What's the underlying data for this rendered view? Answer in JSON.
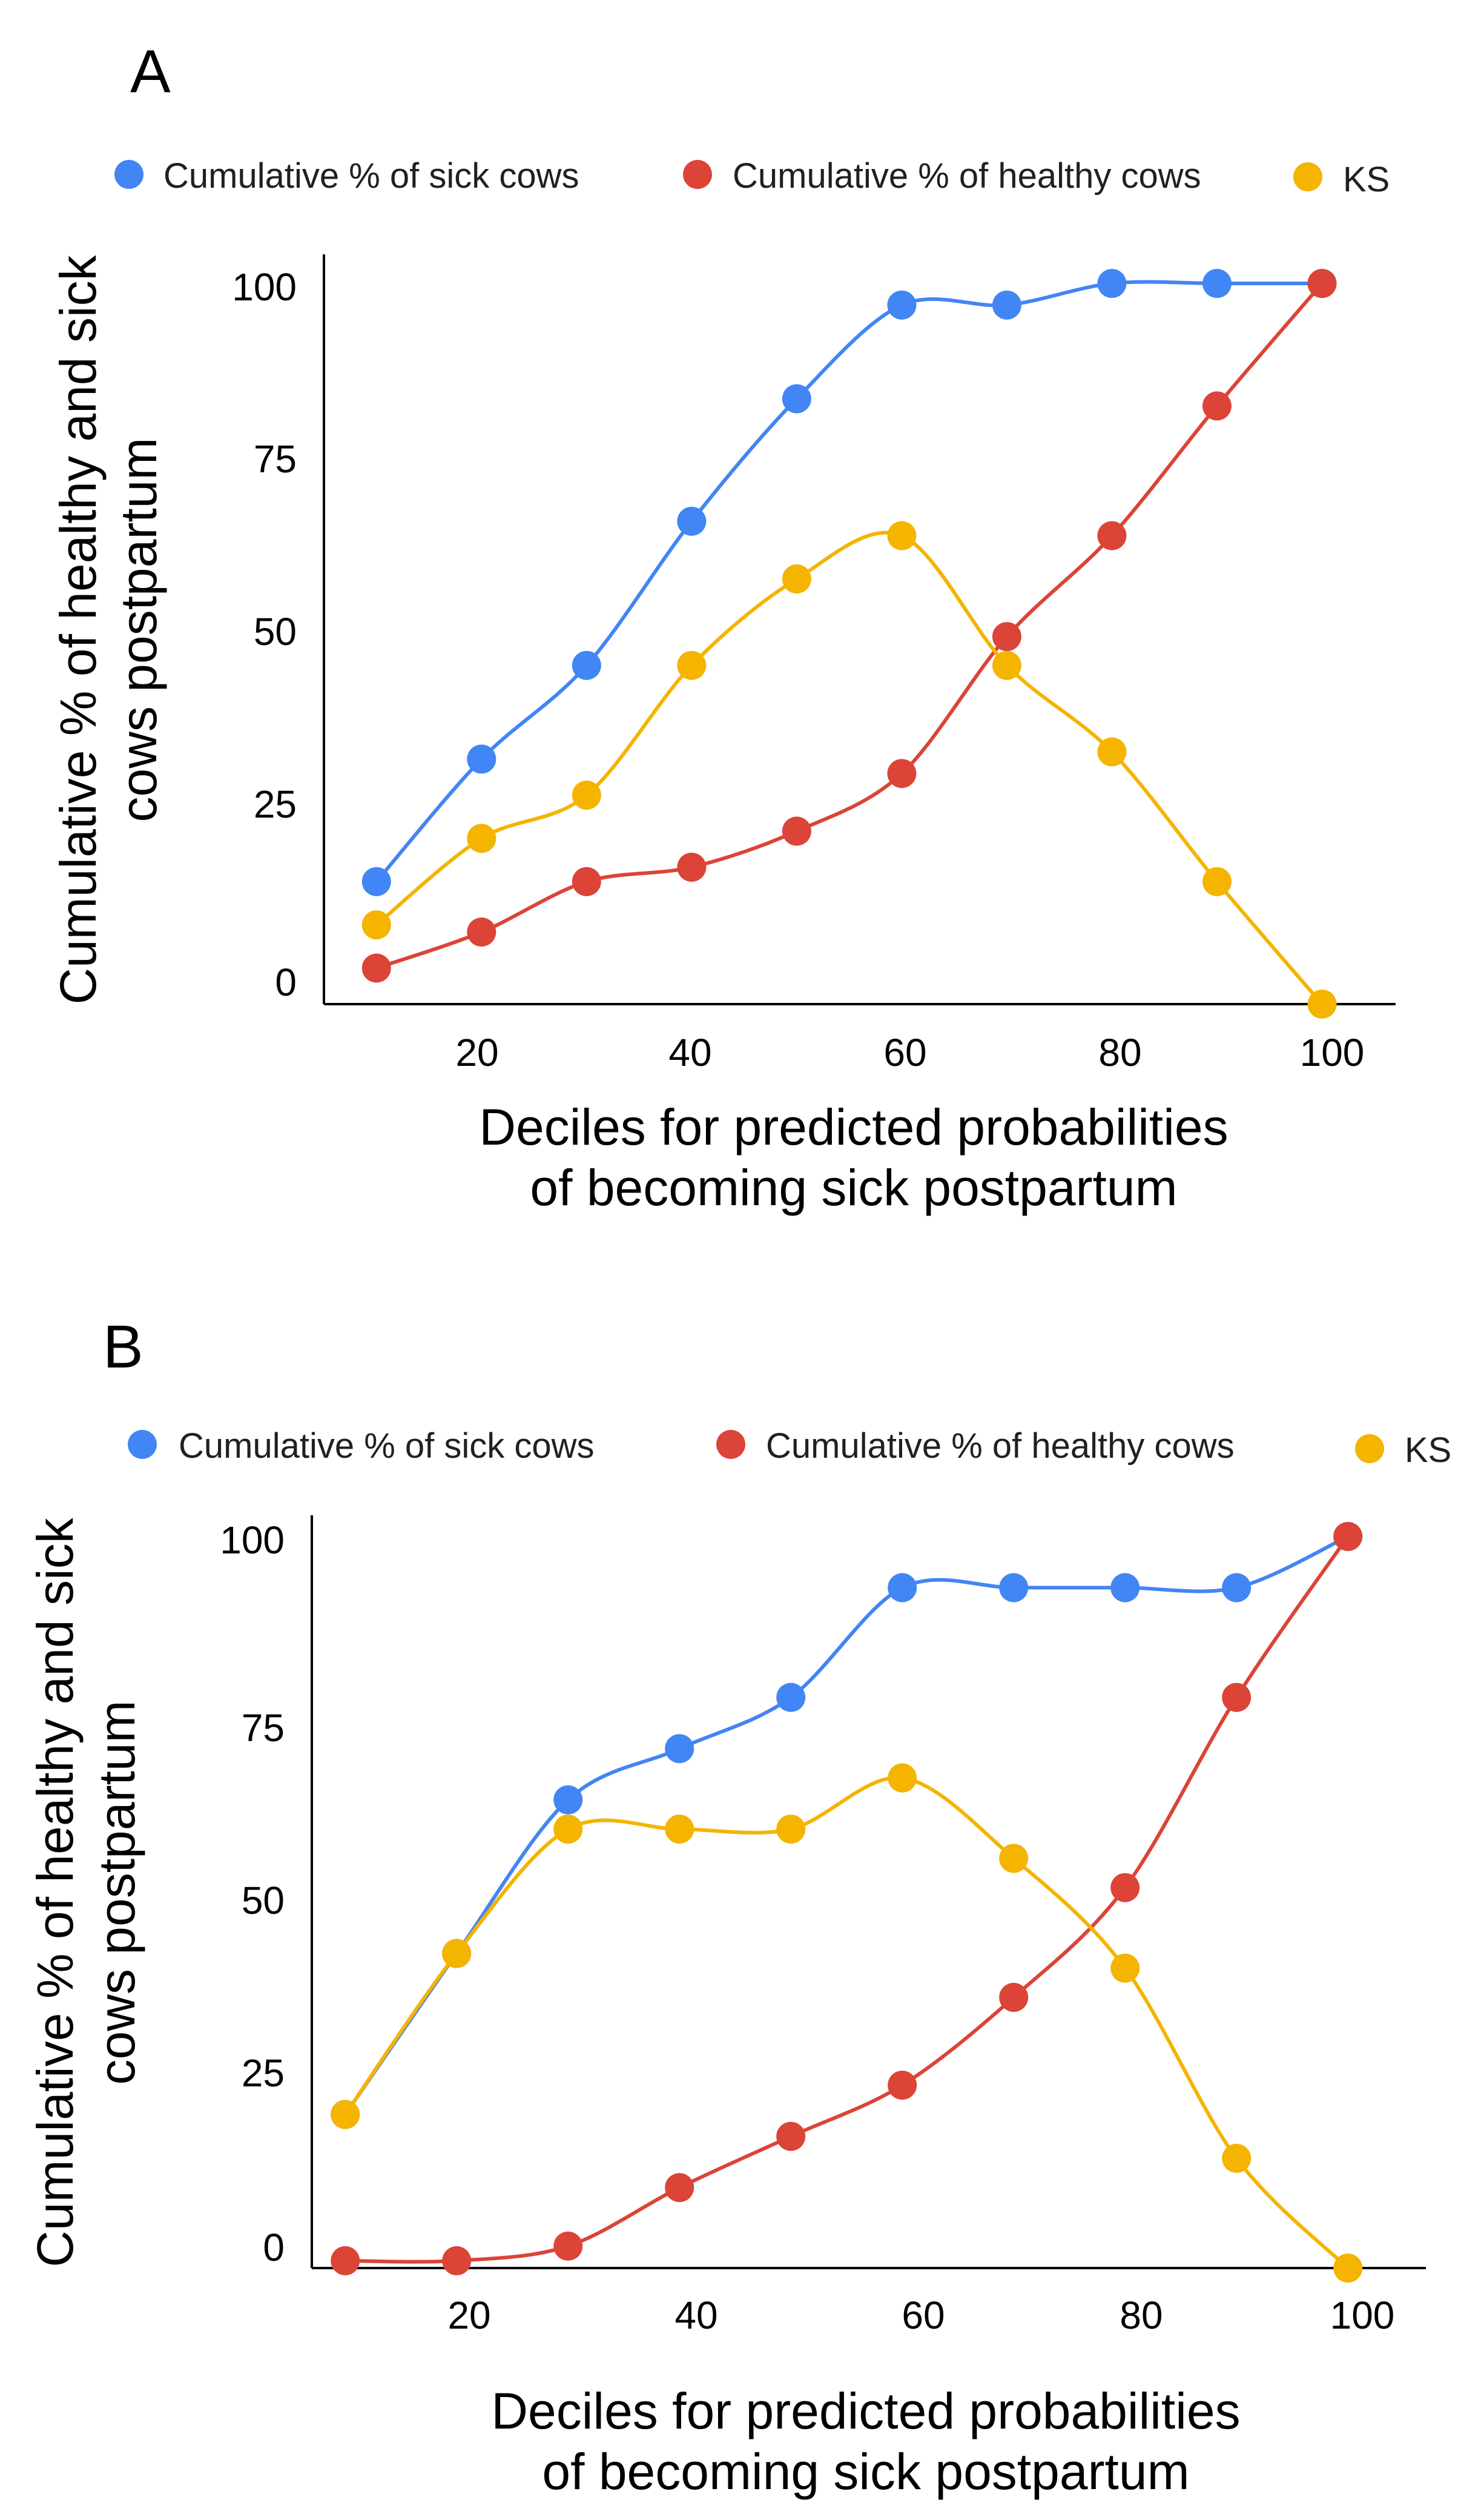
{
  "chart_data": [
    {
      "type": "line",
      "panel": "A",
      "legend": [
        "Cumulative % of sick cows",
        "Cumulative % of healthy cows",
        "KS"
      ],
      "x": [
        10,
        20,
        30,
        40,
        50,
        60,
        70,
        80,
        90,
        100
      ],
      "xticks": [
        "20",
        "40",
        "60",
        "80",
        "100"
      ],
      "yticks": [
        "0",
        "25",
        "50",
        "75",
        "100"
      ],
      "xlim": [
        5,
        107
      ],
      "ylim": [
        0,
        100
      ],
      "xlabel": [
        "Deciles for predicted probabilities",
        "of becoming sick postpartum"
      ],
      "ylabel": [
        "Cumulative % of healthy and sick",
        "cows postpartum"
      ],
      "series": [
        {
          "name": "Cumulative % of sick cows",
          "color": "#4285f4",
          "values": [
            17,
            34,
            47,
            67,
            84,
            97,
            97,
            100,
            100,
            100
          ]
        },
        {
          "name": "Cumulative % of healthy cows",
          "color": "#db4437",
          "values": [
            5,
            10,
            17,
            19,
            24,
            32,
            51,
            65,
            83,
            100
          ]
        },
        {
          "name": "KS",
          "color": "#f4b400",
          "values": [
            11,
            23,
            29,
            47,
            59,
            65,
            47,
            35,
            17,
            0
          ]
        }
      ]
    },
    {
      "type": "line",
      "panel": "B",
      "legend": [
        "Cumulative % of sick cows",
        "Cumulative % of healthy cows",
        "KS"
      ],
      "x": [
        10,
        20,
        30,
        40,
        50,
        60,
        70,
        80,
        90,
        100
      ],
      "xticks": [
        "20",
        "40",
        "60",
        "80",
        "100"
      ],
      "yticks": [
        "0",
        "25",
        "50",
        "75",
        "100"
      ],
      "xlim": [
        7,
        107
      ],
      "ylim": [
        0,
        100
      ],
      "xlabel": [
        "Deciles for predicted probabilities",
        "of becoming sick postpartum"
      ],
      "ylabel": [
        "Cumulative % of healthy and sick",
        "cows postpartum"
      ],
      "series": [
        {
          "name": "Cumulative % of sick cows",
          "color": "#4285f4",
          "values": [
            21,
            43,
            64,
            71,
            78,
            93,
            93,
            93,
            93,
            100
          ]
        },
        {
          "name": "Cumulative % of healthy cows",
          "color": "#db4437",
          "values": [
            1,
            1,
            3,
            11,
            18,
            25,
            37,
            52,
            78,
            100
          ]
        },
        {
          "name": "KS",
          "color": "#f4b400",
          "values": [
            21,
            43,
            60,
            60,
            60,
            67,
            56,
            41,
            15,
            0
          ]
        }
      ]
    }
  ]
}
